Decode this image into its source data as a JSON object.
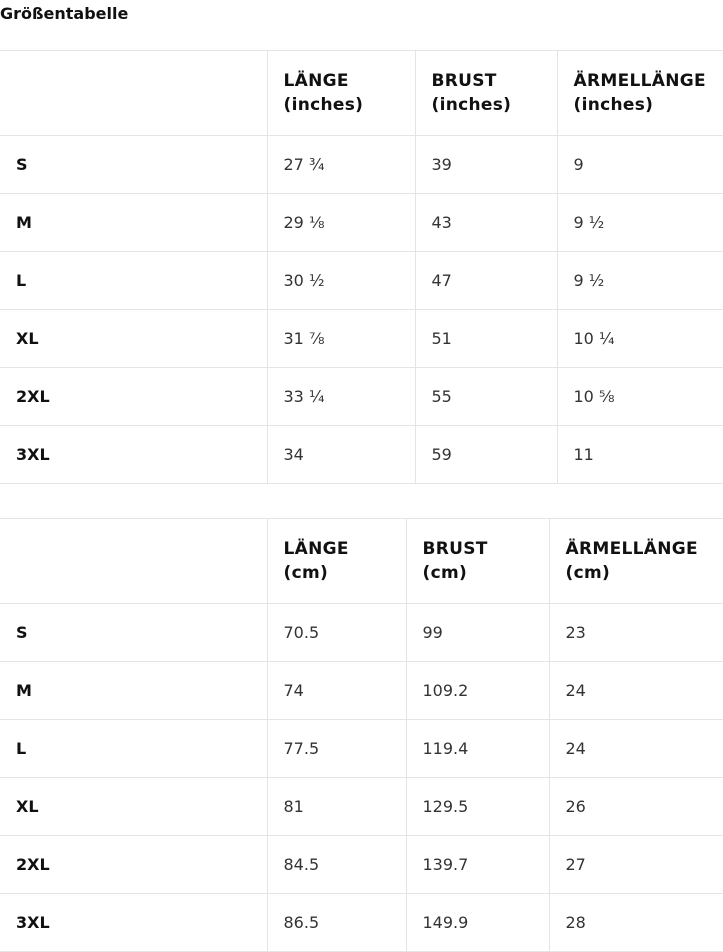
{
  "title": "Größentabelle",
  "tables": [
    {
      "headers": [
        "",
        "LÄNGE\n(inches)",
        "BRUST\n(inches)",
        "ÄRMELLÄNGE\n(inches)"
      ],
      "rows": [
        [
          "S",
          "27 ¾",
          "39",
          "9"
        ],
        [
          "M",
          "29 ⅛",
          "43",
          "9 ½"
        ],
        [
          "L",
          "30 ½",
          "47",
          "9 ½"
        ],
        [
          "XL",
          "31 ⅞",
          "51",
          "10 ¼"
        ],
        [
          "2XL",
          "33 ¼",
          "55",
          "10 ⅝"
        ],
        [
          "3XL",
          "34",
          "59",
          "11"
        ]
      ]
    },
    {
      "headers": [
        "",
        "LÄNGE\n(cm)",
        "BRUST\n(cm)",
        "ÄRMELLÄNGE\n(cm)"
      ],
      "rows": [
        [
          "S",
          "70.5",
          "99",
          "23"
        ],
        [
          "M",
          "74",
          "109.2",
          "24"
        ],
        [
          "L",
          "77.5",
          "119.4",
          "24"
        ],
        [
          "XL",
          "81",
          "129.5",
          "26"
        ],
        [
          "2XL",
          "84.5",
          "139.7",
          "27"
        ],
        [
          "3XL",
          "86.5",
          "149.9",
          "28"
        ]
      ]
    }
  ]
}
